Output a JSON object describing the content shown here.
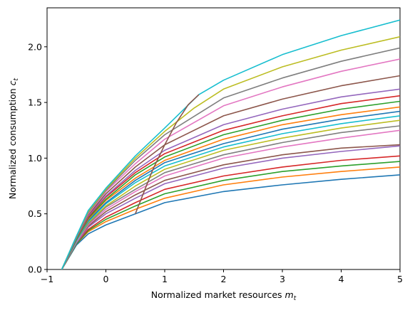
{
  "chart_data": {
    "type": "line",
    "title": "",
    "xlabel": "Normalized market resources",
    "xlabel_symbol": "m",
    "xlabel_subscript": "t",
    "ylabel": "Normalized consumption",
    "ylabel_symbol": "c",
    "ylabel_subscript": "t",
    "xlim": [
      -1,
      5
    ],
    "ylim": [
      0,
      2.35
    ],
    "xticks": [
      "−1",
      "0",
      "1",
      "2",
      "3",
      "4",
      "5"
    ],
    "xtick_values": [
      -1,
      0,
      1,
      2,
      3,
      4,
      5
    ],
    "yticks": [
      "0.0",
      "0.5",
      "1.0",
      "1.5",
      "2.0"
    ],
    "ytick_values": [
      0,
      0.5,
      1.0,
      1.5,
      2.0
    ],
    "grid": false,
    "legend": "none",
    "series": [
      {
        "color": "#1f77b4",
        "x": [
          -0.75,
          -0.5,
          -0.3,
          0,
          0.5,
          1,
          2,
          3,
          4,
          5
        ],
        "y": [
          0,
          0.22,
          0.32,
          0.4,
          0.5,
          0.6,
          0.7,
          0.76,
          0.81,
          0.85
        ]
      },
      {
        "color": "#ff7f0e",
        "x": [
          -0.75,
          -0.5,
          -0.3,
          0,
          0.5,
          1,
          2,
          3,
          4,
          5
        ],
        "y": [
          0,
          0.23,
          0.34,
          0.43,
          0.54,
          0.64,
          0.76,
          0.83,
          0.88,
          0.92
        ]
      },
      {
        "color": "#2ca02c",
        "x": [
          -0.75,
          -0.5,
          -0.3,
          0,
          0.5,
          1,
          2,
          3,
          4,
          5
        ],
        "y": [
          0,
          0.23,
          0.35,
          0.45,
          0.57,
          0.68,
          0.8,
          0.88,
          0.93,
          0.97
        ]
      },
      {
        "color": "#d62728",
        "x": [
          -0.75,
          -0.5,
          -0.3,
          0,
          0.5,
          1,
          2,
          3,
          4,
          5
        ],
        "y": [
          0,
          0.24,
          0.36,
          0.47,
          0.6,
          0.72,
          0.84,
          0.92,
          0.98,
          1.02
        ]
      },
      {
        "color": "#9467bd",
        "x": [
          -0.75,
          -0.5,
          -0.3,
          0,
          0.5,
          1,
          2,
          3,
          4,
          5
        ],
        "y": [
          0,
          0.24,
          0.38,
          0.5,
          0.64,
          0.77,
          0.91,
          1.0,
          1.06,
          1.11
        ]
      },
      {
        "color": "#8c564b",
        "x": [
          -0.75,
          -0.5,
          -0.3,
          0,
          0.5,
          1,
          2,
          3,
          4,
          5
        ],
        "y": [
          0,
          0.25,
          0.39,
          0.52,
          0.67,
          0.8,
          0.94,
          1.03,
          1.09,
          1.12
        ]
      },
      {
        "color": "#e377c2",
        "x": [
          -0.75,
          -0.5,
          -0.3,
          0,
          0.5,
          1,
          2,
          3,
          4,
          5
        ],
        "y": [
          0,
          0.25,
          0.4,
          0.54,
          0.7,
          0.84,
          1.0,
          1.1,
          1.18,
          1.25
        ]
      },
      {
        "color": "#7f7f7f",
        "x": [
          -0.75,
          -0.5,
          -0.3,
          0,
          0.5,
          1,
          2,
          3,
          4,
          5
        ],
        "y": [
          0,
          0.26,
          0.41,
          0.56,
          0.72,
          0.87,
          1.03,
          1.14,
          1.23,
          1.29
        ]
      },
      {
        "color": "#bcbd22",
        "x": [
          -0.75,
          -0.5,
          -0.3,
          0,
          0.5,
          1,
          2,
          3,
          4,
          5
        ],
        "y": [
          0,
          0.26,
          0.42,
          0.57,
          0.75,
          0.9,
          1.07,
          1.18,
          1.27,
          1.34
        ]
      },
      {
        "color": "#17becf",
        "x": [
          -0.75,
          -0.5,
          -0.3,
          0,
          0.5,
          1,
          2,
          3,
          4,
          5
        ],
        "y": [
          0,
          0.26,
          0.43,
          0.59,
          0.78,
          0.93,
          1.1,
          1.22,
          1.31,
          1.38
        ]
      },
      {
        "color": "#1f77b4",
        "x": [
          -0.75,
          -0.5,
          -0.3,
          0,
          0.5,
          1,
          2,
          3,
          4,
          5
        ],
        "y": [
          0,
          0.27,
          0.44,
          0.6,
          0.8,
          0.96,
          1.13,
          1.26,
          1.35,
          1.42
        ]
      },
      {
        "color": "#ff7f0e",
        "x": [
          -0.75,
          -0.5,
          -0.3,
          0,
          0.5,
          1,
          2,
          3,
          4,
          5
        ],
        "y": [
          0,
          0.27,
          0.45,
          0.62,
          0.82,
          0.98,
          1.17,
          1.3,
          1.39,
          1.46
        ]
      },
      {
        "color": "#2ca02c",
        "x": [
          -0.75,
          -0.5,
          -0.3,
          0,
          0.5,
          1,
          2,
          3,
          4,
          5
        ],
        "y": [
          0,
          0.27,
          0.46,
          0.63,
          0.85,
          1.01,
          1.21,
          1.34,
          1.44,
          1.51
        ]
      },
      {
        "color": "#d62728",
        "x": [
          -0.75,
          -0.5,
          -0.3,
          0,
          0.5,
          1,
          2,
          3,
          4,
          5
        ],
        "y": [
          0,
          0.28,
          0.47,
          0.65,
          0.87,
          1.04,
          1.25,
          1.38,
          1.49,
          1.56
        ]
      },
      {
        "color": "#9467bd",
        "x": [
          -0.75,
          -0.5,
          -0.3,
          0,
          0.5,
          1,
          2,
          3,
          4,
          5
        ],
        "y": [
          0,
          0.28,
          0.48,
          0.66,
          0.89,
          1.07,
          1.3,
          1.44,
          1.55,
          1.62
        ]
      },
      {
        "color": "#8c564b",
        "x": [
          -0.75,
          -0.5,
          -0.3,
          0,
          0.5,
          1,
          2,
          3,
          4,
          5
        ],
        "y": [
          0,
          0.28,
          0.49,
          0.68,
          0.92,
          1.12,
          1.38,
          1.53,
          1.65,
          1.74
        ]
      },
      {
        "color": "#e377c2",
        "x": [
          -0.75,
          -0.5,
          -0.3,
          0,
          0.5,
          1,
          2,
          3,
          4,
          5
        ],
        "y": [
          0,
          0.29,
          0.5,
          0.7,
          0.95,
          1.17,
          1.47,
          1.64,
          1.78,
          1.89
        ]
      },
      {
        "color": "#7f7f7f",
        "x": [
          -0.75,
          -0.5,
          -0.3,
          0,
          0.5,
          1,
          2,
          3,
          4,
          5
        ],
        "y": [
          0,
          0.29,
          0.51,
          0.71,
          0.98,
          1.21,
          1.54,
          1.72,
          1.87,
          1.99
        ]
      },
      {
        "color": "#bcbd22",
        "x": [
          -0.75,
          -0.5,
          -0.3,
          0,
          0.5,
          1,
          1.5,
          2,
          3,
          4,
          5
        ],
        "y": [
          0,
          0.3,
          0.52,
          0.72,
          1.0,
          1.24,
          1.45,
          1.62,
          1.82,
          1.97,
          2.09
        ]
      },
      {
        "color": "#17becf",
        "x": [
          -0.75,
          -0.5,
          -0.3,
          0,
          0.5,
          1,
          1.58,
          2,
          3,
          4,
          5
        ],
        "y": [
          0,
          0.3,
          0.53,
          0.73,
          1.02,
          1.27,
          1.57,
          1.7,
          1.93,
          2.1,
          2.24
        ]
      },
      {
        "color": "#8c564b",
        "x": [
          0.5,
          0.65,
          0.8,
          1.0,
          1.2,
          1.4,
          1.58
        ],
        "y": [
          0.5,
          0.7,
          0.9,
          1.12,
          1.32,
          1.48,
          1.57
        ]
      }
    ]
  }
}
